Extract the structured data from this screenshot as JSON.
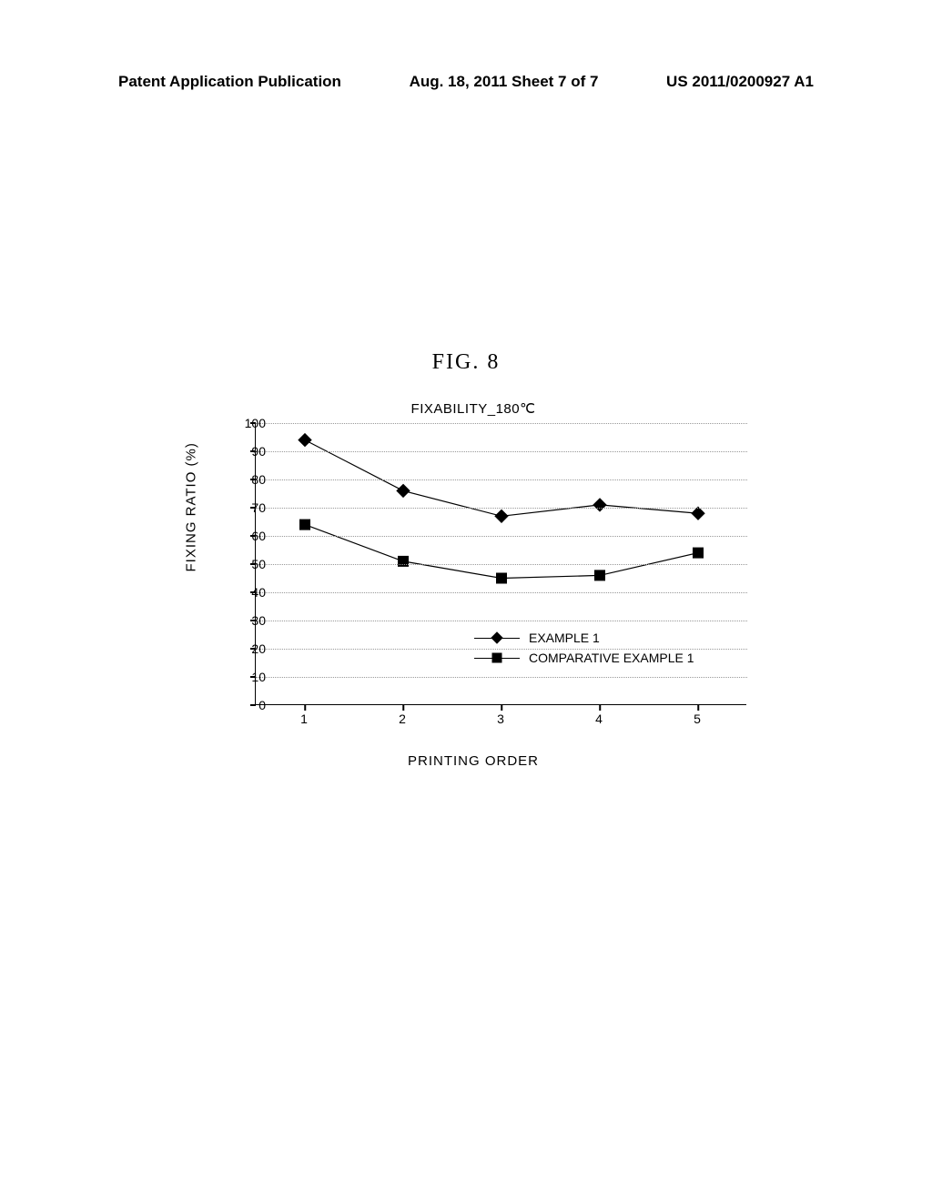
{
  "header": {
    "left": "Patent Application Publication",
    "center": "Aug. 18, 2011  Sheet 7 of 7",
    "right": "US 2011/0200927 A1"
  },
  "figure_label": "FIG.  8",
  "chart": {
    "type": "line",
    "title": "FIXABILITY_180℃",
    "xlabel": "PRINTING ORDER",
    "ylabel": "FIXING RATIO (%)",
    "ylim": [
      0,
      100
    ],
    "ytick_step": 10,
    "xlim": [
      0.5,
      5.5
    ],
    "xticks": [
      1,
      2,
      3,
      4,
      5
    ],
    "grid_color": "#999999",
    "axis_color": "#000000",
    "background_color": "#ffffff",
    "title_fontsize": 15,
    "label_fontsize": 15,
    "tick_fontsize": 14,
    "marker_size": 10,
    "series": [
      {
        "name": "EXAMPLE 1",
        "marker": "diamond",
        "color": "#000000",
        "x": [
          1,
          2,
          3,
          4,
          5
        ],
        "y": [
          94,
          76,
          67,
          71,
          68
        ]
      },
      {
        "name": "COMPARATIVE EXAMPLE 1",
        "marker": "square",
        "color": "#000000",
        "x": [
          1,
          2,
          3,
          4,
          5
        ],
        "y": [
          64,
          51,
          45,
          46,
          54
        ]
      }
    ]
  }
}
